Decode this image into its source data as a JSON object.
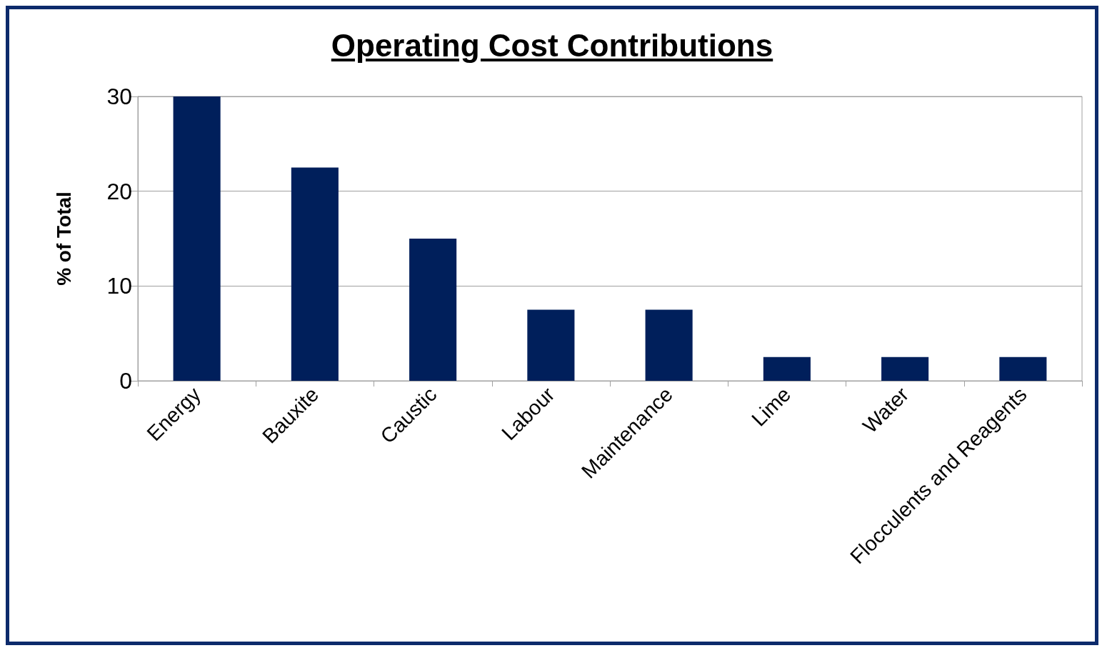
{
  "chart_data": {
    "type": "bar",
    "title": "Operating Cost Contributions",
    "ylabel": "% of Total",
    "categories": [
      "Energy",
      "Bauxite",
      "Caustic",
      "Labour",
      "Maintenance",
      "Lime",
      "Water",
      "Flocculents and Reagents"
    ],
    "values": [
      30,
      22.5,
      15,
      7.5,
      7.5,
      2.5,
      2.5,
      2.5
    ],
    "color": "#001f5b",
    "ylim": [
      0,
      30
    ],
    "yticks": [
      0,
      10,
      20,
      30
    ],
    "grid": "y"
  }
}
